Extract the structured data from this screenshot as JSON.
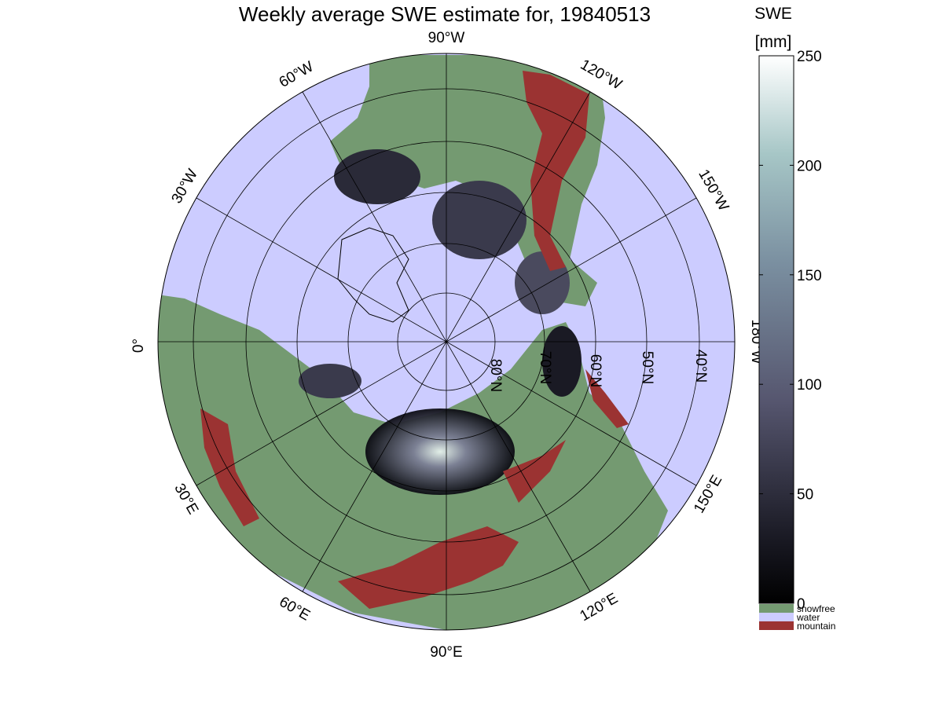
{
  "title": "Weekly average SWE estimate for, 19840513",
  "colorbar": {
    "label_line1": "SWE",
    "label_line2": "[mm]",
    "ticks": [
      "0",
      "50",
      "100",
      "150",
      "200",
      "250"
    ],
    "range": [
      0,
      250
    ],
    "colormap": "bone",
    "categories": [
      {
        "label": "snowfree",
        "color": "#749a71"
      },
      {
        "label": "water",
        "color": "#ccccff"
      },
      {
        "label": "mountain",
        "color": "#9b3332"
      }
    ]
  },
  "map": {
    "projection": "north polar stereographic",
    "longitude_labels": [
      "90°W",
      "60°W",
      "30°W",
      "0°",
      "30°E",
      "60°E",
      "90°E",
      "120°E",
      "150°E",
      "180°W",
      "150°W",
      "120°W"
    ],
    "latitude_labels": [
      "80°N",
      "70°N",
      "60°N",
      "50°N",
      "40°N"
    ],
    "colors": {
      "ocean": "#ccccff",
      "land": "#749a71",
      "mountain": "#9b3332",
      "snow_low": "#0b0b12",
      "snow_high": "#e8f4ee",
      "graticule": "#000000"
    }
  }
}
